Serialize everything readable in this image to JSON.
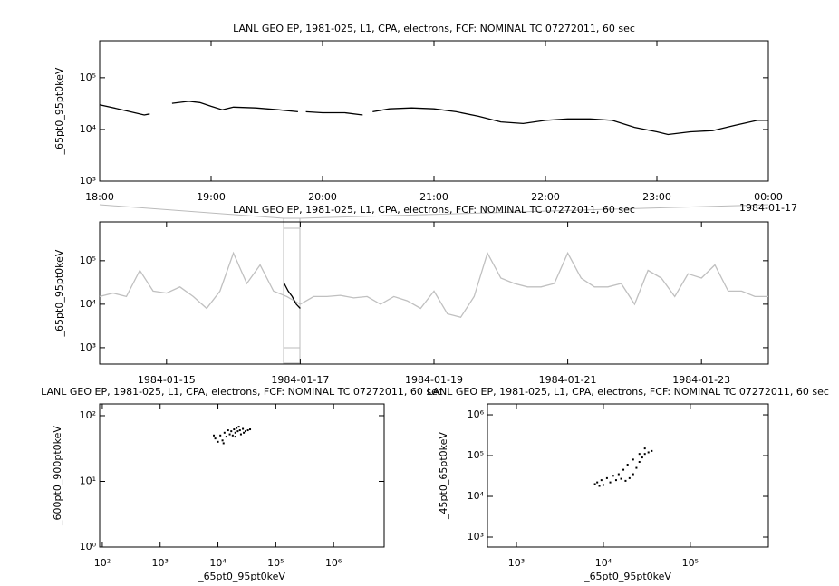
{
  "chart_data": [
    {
      "type": "line",
      "title": "LANL GEO EP, 1981-025, L1, CPA, electrons, FCF: NOMINAL TC 07272011, 60 sec",
      "ylabel": "_65pt0_95pt0keV",
      "log_y": true,
      "log_x": false,
      "xlim": [
        18,
        24
      ],
      "xticks": [
        {
          "value": 18,
          "label": "18:00"
        },
        {
          "value": 19,
          "label": "19:00"
        },
        {
          "value": 20,
          "label": "20:00"
        },
        {
          "value": 21,
          "label": "21:00"
        },
        {
          "value": 22,
          "label": "22:00"
        },
        {
          "value": 23,
          "label": "23:00"
        },
        {
          "value": 24,
          "label": "00:00"
        }
      ],
      "x_sublabel": "1984-01-17",
      "ylim": [
        1000,
        520000
      ],
      "yticks": [
        {
          "value": 1000,
          "label": "10³"
        },
        {
          "value": 10000,
          "label": "10⁴"
        },
        {
          "value": 100000,
          "label": "10⁵"
        }
      ],
      "series": [
        {
          "color": "#000000",
          "x": [
            18.0,
            18.2,
            18.4,
            18.45,
            18.5,
            18.65,
            18.8,
            18.9,
            19.0,
            19.1,
            19.2,
            19.4,
            19.6,
            19.78,
            19.8,
            19.85,
            20.0,
            20.2,
            20.36,
            20.4,
            20.45,
            20.6,
            20.8,
            21.0,
            21.2,
            21.4,
            21.6,
            21.8,
            22.0,
            22.2,
            22.4,
            22.6,
            22.8,
            23.0,
            23.1,
            23.3,
            23.5,
            23.7,
            23.9,
            24.0
          ],
          "values": [
            30000,
            24000,
            19000,
            20000,
            null,
            32000,
            35000,
            33000,
            28000,
            24000,
            27000,
            26000,
            24000,
            22000,
            null,
            22000,
            21000,
            21000,
            19000,
            null,
            22000,
            25000,
            26000,
            25000,
            22000,
            18000,
            14000,
            13000,
            15000,
            16000,
            16000,
            15000,
            11000,
            9000,
            8000,
            9000,
            9500,
            12000,
            15000,
            15000
          ]
        }
      ]
    },
    {
      "type": "line",
      "title": "LANL GEO EP, 1981-025, L1, CPA, electrons, FCF: NOMINAL TC 07272011, 60 sec",
      "ylabel": "_65pt0_95pt0keV",
      "log_y": true,
      "log_x": false,
      "xlim": [
        14,
        24
      ],
      "xticks": [
        {
          "value": 15,
          "label": "1984-01-15"
        },
        {
          "value": 17,
          "label": "1984-01-17"
        },
        {
          "value": 19,
          "label": "1984-01-19"
        },
        {
          "value": 21,
          "label": "1984-01-21"
        },
        {
          "value": 23,
          "label": "1984-01-23"
        }
      ],
      "ylim": [
        420,
        780000
      ],
      "yticks": [
        {
          "value": 1000,
          "label": "10³"
        },
        {
          "value": 10000,
          "label": "10⁴"
        },
        {
          "value": 100000,
          "label": "10⁵"
        }
      ],
      "series": [
        {
          "color": "#c0c0c0",
          "x": [
            14.0,
            14.2,
            14.4,
            14.6,
            14.8,
            15.0,
            15.2,
            15.4,
            15.6,
            15.8,
            16.0,
            16.2,
            16.4,
            16.6,
            16.8,
            17.0,
            17.2,
            17.4,
            17.6,
            17.8,
            18.0,
            18.2,
            18.4,
            18.6,
            18.8,
            19.0,
            19.2,
            19.4,
            19.6,
            19.8,
            20.0,
            20.2,
            20.4,
            20.6,
            20.8,
            21.0,
            21.2,
            21.4,
            21.6,
            21.8,
            22.0,
            22.2,
            22.4,
            22.6,
            22.8,
            23.0,
            23.2,
            23.4,
            23.6,
            23.8,
            24.0
          ],
          "values": [
            15000,
            18000,
            15000,
            60000,
            20000,
            18000,
            25000,
            15000,
            8000,
            20000,
            150000,
            30000,
            80000,
            20000,
            15000,
            10000,
            15000,
            15000,
            16000,
            14000,
            15000,
            10000,
            15000,
            12000,
            8000,
            20000,
            6000,
            5000,
            15000,
            150000,
            40000,
            30000,
            25000,
            25000,
            30000,
            150000,
            40000,
            25000,
            25000,
            30000,
            10000,
            60000,
            40000,
            15000,
            50000,
            40000,
            80000,
            20000,
            20000,
            15000,
            15000
          ]
        },
        {
          "color": "#000000",
          "x": [
            16.76,
            16.82,
            16.88,
            16.94,
            17.0
          ],
          "values": [
            30000,
            20000,
            15000,
            10000,
            8000
          ]
        }
      ]
    },
    {
      "type": "scatter",
      "title": "LANL GEO EP, 1981-025, L1, CPA, electrons, FCF: NOMINAL TC 07272011, 60 sec",
      "ylabel": "_600pt0_900pt0keV",
      "xlabel": "_65pt0_95pt0keV",
      "log_y": true,
      "log_x": true,
      "xlim": [
        90,
        7500000
      ],
      "xticks": [
        {
          "value": 100,
          "label": "10²"
        },
        {
          "value": 1000,
          "label": "10³"
        },
        {
          "value": 10000,
          "label": "10⁴"
        },
        {
          "value": 100000,
          "label": "10⁵"
        },
        {
          "value": 1000000,
          "label": "10⁶"
        }
      ],
      "ylim": [
        1,
        151
      ],
      "yticks": [
        {
          "value": 1,
          "label": "10⁰"
        },
        {
          "value": 10,
          "label": "10¹"
        },
        {
          "value": 100,
          "label": "10²"
        }
      ],
      "series": [
        {
          "color": "#000000",
          "x": [
            9000,
            10000,
            11000,
            12000,
            13000,
            14000,
            15000,
            16000,
            17000,
            18000,
            19000,
            20000,
            21000,
            22000,
            24000,
            25000,
            27000,
            30000,
            33000,
            36000,
            8500,
            12500,
            20000,
            23000,
            28000
          ],
          "values": [
            45,
            40,
            50,
            42,
            55,
            48,
            60,
            52,
            58,
            50,
            62,
            55,
            65,
            58,
            60,
            52,
            63,
            58,
            60,
            62,
            50,
            38,
            48,
            68,
            55
          ]
        }
      ]
    },
    {
      "type": "scatter",
      "title": "LANL GEO EP, 1981-025, L1, CPA, electrons, FCF: NOMINAL TC 07272011, 60 sec",
      "ylabel": "_45pt0_65pt0keV",
      "xlabel": "_65pt0_95pt0keV",
      "log_y": true,
      "log_x": true,
      "xlim": [
        464,
        790000
      ],
      "xticks": [
        {
          "value": 1000,
          "label": "10³"
        },
        {
          "value": 10000,
          "label": "10⁴"
        },
        {
          "value": 100000,
          "label": "10⁵"
        }
      ],
      "ylim": [
        570,
        1850000
      ],
      "yticks": [
        {
          "value": 1000,
          "label": "10³"
        },
        {
          "value": 10000,
          "label": "10⁴"
        },
        {
          "value": 100000,
          "label": "10⁵"
        },
        {
          "value": 1000000,
          "label": "10⁶"
        }
      ],
      "series": [
        {
          "color": "#000000",
          "x": [
            8000,
            9000,
            10000,
            12000,
            14000,
            16000,
            18000,
            20000,
            22000,
            24000,
            26000,
            28000,
            30000,
            33000,
            36000,
            30000,
            26000,
            22000,
            19000,
            17000,
            15000,
            13000,
            11000,
            9500,
            8500
          ],
          "values": [
            20000,
            18000,
            19000,
            22000,
            25000,
            27000,
            24000,
            28000,
            35000,
            50000,
            70000,
            90000,
            110000,
            120000,
            130000,
            150000,
            110000,
            80000,
            60000,
            45000,
            35000,
            32000,
            28000,
            25000,
            22000
          ]
        }
      ]
    }
  ]
}
